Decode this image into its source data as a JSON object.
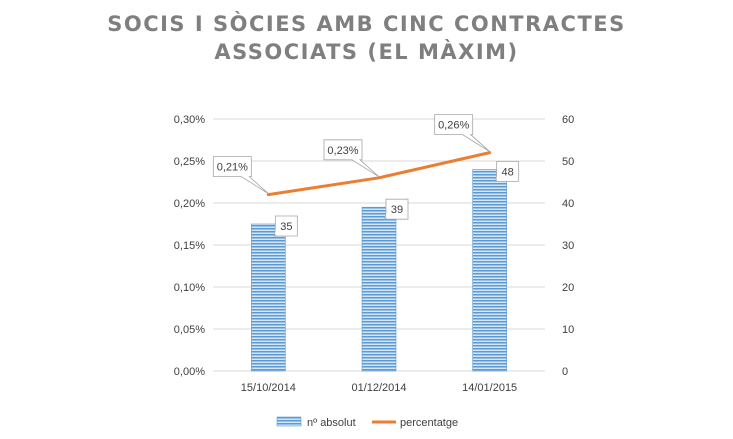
{
  "chart_data": {
    "type": "bar",
    "title_lines": [
      "SOCIS I SÒCIES AMB CINC CONTRACTES",
      "ASSOCIATS (EL MÀXIM)"
    ],
    "categories": [
      "15/10/2014",
      "01/12/2014",
      "14/01/2015"
    ],
    "series": [
      {
        "name": "nº absolut",
        "type": "bar",
        "axis": "right",
        "values": [
          35,
          39,
          48
        ],
        "labels": [
          "35",
          "39",
          "48"
        ],
        "color": "#5b9bd5"
      },
      {
        "name": "percentatge",
        "type": "line",
        "axis": "left",
        "values": [
          0.21,
          0.23,
          0.26
        ],
        "labels": [
          "0,21%",
          "0,23%",
          "0,26%"
        ],
        "color": "#ed7d31"
      }
    ],
    "y_left": {
      "min": 0,
      "max": 0.3,
      "ticks": [
        "0,00%",
        "0,05%",
        "0,10%",
        "0,15%",
        "0,20%",
        "0,25%",
        "0,30%"
      ]
    },
    "y_right": {
      "min": 0,
      "max": 60,
      "ticks": [
        "0",
        "10",
        "20",
        "30",
        "40",
        "50",
        "60"
      ]
    },
    "legend": {
      "position": "bottom",
      "items": [
        "nº absolut",
        "percentatge"
      ]
    },
    "grid": true
  }
}
